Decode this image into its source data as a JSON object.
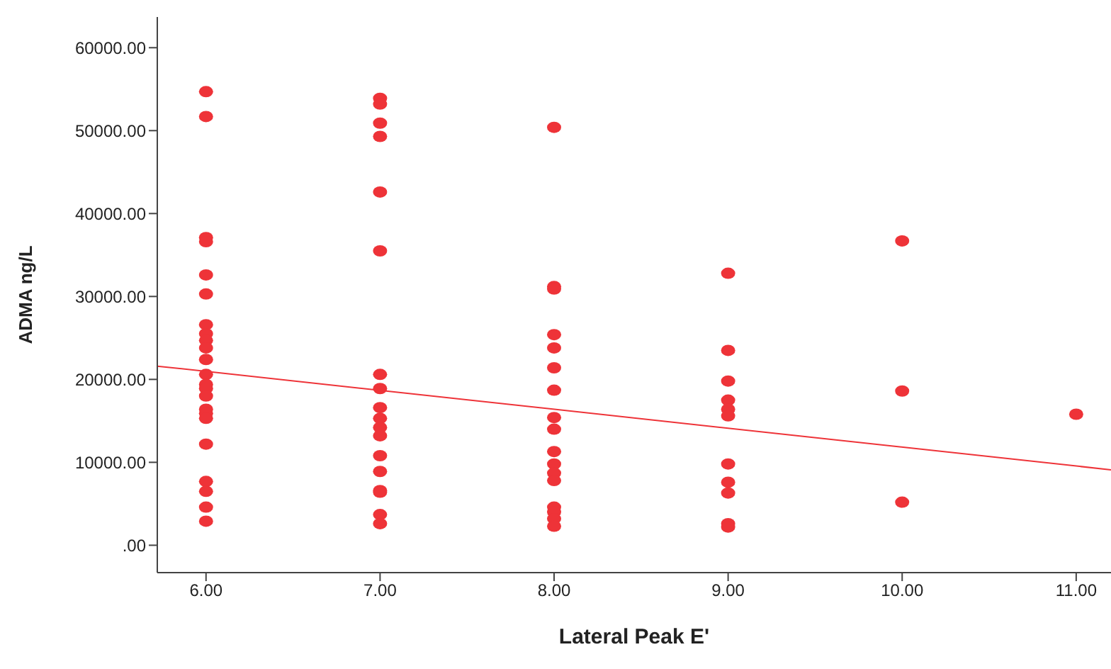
{
  "chart_data": {
    "type": "scatter",
    "xlabel": "Lateral Peak E'",
    "ylabel": "ADMA ng/L",
    "xlim": [
      5.72,
      11.2
    ],
    "xticks": [
      {
        "value": 6,
        "label": "6.00"
      },
      {
        "value": 7,
        "label": "7.00"
      },
      {
        "value": 8,
        "label": "8.00"
      },
      {
        "value": 9,
        "label": "9.00"
      },
      {
        "value": 10,
        "label": "10.00"
      },
      {
        "value": 11,
        "label": "11.00"
      }
    ],
    "ylim": [
      -3300,
      63700
    ],
    "yticks": [
      {
        "value": 0,
        "label": ".00"
      },
      {
        "value": 10000,
        "label": "10000.00"
      },
      {
        "value": 20000,
        "label": "20000.00"
      },
      {
        "value": 30000,
        "label": "30000.00"
      },
      {
        "value": 40000,
        "label": "40000.00"
      },
      {
        "value": 50000,
        "label": "50000.00"
      },
      {
        "value": 60000,
        "label": "60000.00"
      }
    ],
    "grid": false,
    "legend": false,
    "series": [
      {
        "color": "#ee3338",
        "marker": "circle",
        "x": [
          6,
          6,
          6,
          6,
          6,
          6,
          6,
          6,
          6,
          6,
          6,
          6,
          6,
          6,
          6,
          6,
          6,
          6,
          6,
          6,
          6,
          6,
          6,
          7,
          7,
          7,
          7,
          7,
          7,
          7,
          7,
          7,
          7,
          7,
          7,
          7,
          7,
          7,
          7,
          7,
          7,
          8,
          8,
          8,
          8,
          8,
          8,
          8,
          8,
          8,
          8,
          8,
          8,
          8,
          8,
          8,
          8,
          8,
          9,
          9,
          9,
          9,
          9,
          9,
          9,
          9,
          9,
          9,
          9,
          10,
          10,
          10,
          11
        ],
        "values": [
          54700,
          51700,
          37100,
          36600,
          32600,
          30300,
          26600,
          25500,
          24700,
          23800,
          22400,
          20600,
          19400,
          18900,
          18000,
          16400,
          15900,
          15300,
          12200,
          7700,
          6500,
          4600,
          2900,
          53900,
          53200,
          50900,
          49300,
          42600,
          35500,
          20600,
          18900,
          16600,
          15300,
          14200,
          13200,
          10800,
          8900,
          6600,
          6400,
          3700,
          2600,
          50400,
          31200,
          30900,
          25400,
          23800,
          21400,
          18700,
          15400,
          14000,
          11300,
          9800,
          8700,
          7800,
          4600,
          4000,
          3200,
          2300,
          32800,
          23500,
          19800,
          17500,
          16400,
          15600,
          9800,
          7600,
          6300,
          2600,
          2200,
          36700,
          18600,
          5200,
          15800
        ]
      },
      {
        "type": "line",
        "color": "#ee3338",
        "line_style": "solid",
        "x": [
          5.72,
          11.2
        ],
        "values": [
          21600,
          9100
        ]
      }
    ]
  }
}
